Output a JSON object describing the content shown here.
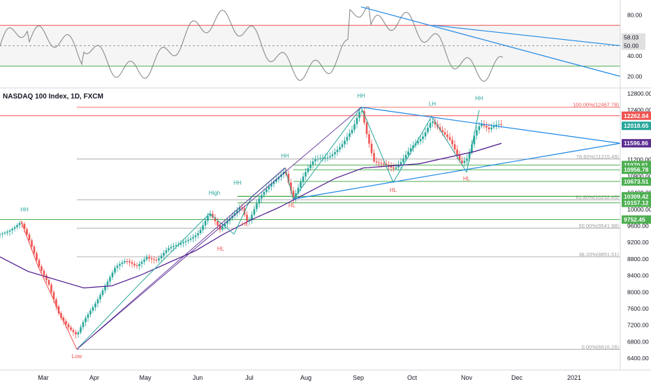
{
  "title": "NASDAQ 100 Index, 1D, FXCM",
  "chart_data": [
    {
      "type": "candlestick",
      "title": "NASDAQ 100 Index, 1D, FXCM",
      "x_ticks": [
        "Mar",
        "Apr",
        "May",
        "Jun",
        "Jul",
        "Aug",
        "Sep",
        "Oct",
        "Nov",
        "Dec",
        "2021"
      ],
      "y_ticks": [
        6400,
        6800,
        7200,
        7600,
        8000,
        8400,
        8800,
        9200,
        9600,
        10000,
        10400,
        10800,
        11200,
        11600,
        12000,
        12400,
        12800
      ],
      "ylim": [
        6250,
        12900
      ],
      "moving_average": "purple",
      "fib_levels": [
        {
          "label": "100.00%(12467.78)",
          "value": 12467.78
        },
        {
          "label": "78.60%(11215.49)",
          "value": 11215.49
        },
        {
          "label": "61.80%(10232.45)",
          "value": 10232.45
        },
        {
          "label": "50.00%(9541.98)",
          "value": 9541.98
        },
        {
          "label": "38.20%(8851.51)",
          "value": 8851.51
        },
        {
          "label": "0.00%(6616.26)",
          "value": 6616.26
        }
      ],
      "price_badges": [
        {
          "text": "12262.84",
          "value": 12262.84,
          "color": "#ef5350"
        },
        {
          "text": "12018.65",
          "value": 12018.65,
          "color": "#26a69a"
        },
        {
          "text": "11596.86",
          "value": 11596.86,
          "color": "#5b2c91"
        },
        {
          "text": "11070.61",
          "value": 11070.61,
          "color": "#4caf50"
        },
        {
          "text": "10956.78",
          "value": 10956.78,
          "color": "#4caf50"
        },
        {
          "text": "10673.51",
          "value": 10673.51,
          "color": "#4caf50"
        },
        {
          "text": "10314.74",
          "value": 10314.74,
          "color": "#4caf50"
        },
        {
          "text": "10309.42",
          "value": 10309.42,
          "color": "#4caf50"
        },
        {
          "text": "10157.12",
          "value": 10157.12,
          "color": "#4caf50"
        },
        {
          "text": "9752.45",
          "value": 9752.45,
          "color": "#4caf50"
        }
      ],
      "annotations": [
        {
          "text": "HH",
          "color": "#26a69a"
        },
        {
          "text": "Low",
          "color": "#ef5350"
        },
        {
          "text": "High",
          "color": "#26a69a"
        },
        {
          "text": "HH",
          "color": "#26a69a"
        },
        {
          "text": "HL",
          "color": "#ef5350"
        },
        {
          "text": "HL",
          "color": "#ef5350"
        },
        {
          "text": "HH",
          "color": "#26a69a"
        },
        {
          "text": "HL",
          "color": "#ef5350"
        },
        {
          "text": "HH",
          "color": "#26a69a"
        },
        {
          "text": "HL",
          "color": "#ef5350"
        },
        {
          "text": "LH",
          "color": "#26a69a"
        },
        {
          "text": "HH",
          "color": "#26a69a"
        },
        {
          "text": "HL",
          "color": "#ef5350"
        }
      ]
    },
    {
      "type": "line",
      "y_ticks": [
        20,
        40,
        60,
        80
      ],
      "ylim": [
        10,
        92
      ],
      "levels": [
        70,
        30
      ],
      "badges": [
        {
          "text": "58.03",
          "value": 58.03,
          "color": "#131722"
        },
        {
          "text": "50.00",
          "value": 50.0,
          "color": "#131722"
        }
      ]
    }
  ]
}
